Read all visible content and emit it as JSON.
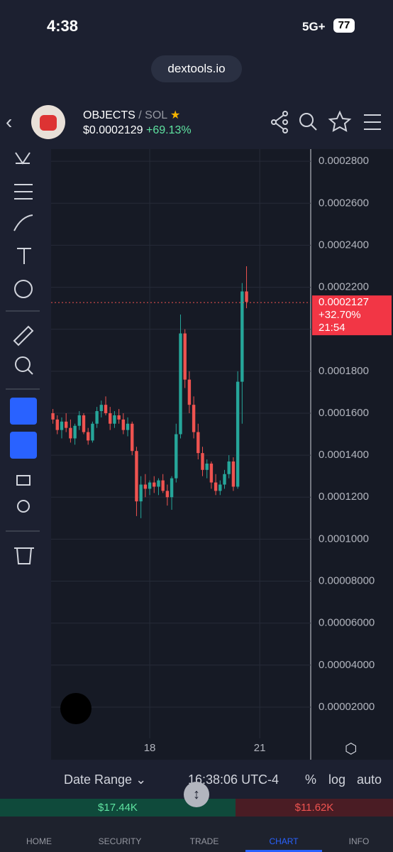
{
  "status_bar": {
    "time": "4:38",
    "network": "5G+",
    "battery": "77"
  },
  "url": "dextools.io",
  "header": {
    "pair": "OBJECTS",
    "quote": "SOL",
    "price": "$0.0002129",
    "change": "+69.13%"
  },
  "chart_data": {
    "type": "candlestick",
    "x": [
      15.36,
      15.48,
      15.6,
      15.72,
      15.84,
      15.96,
      16.08,
      16.2,
      16.32,
      16.44,
      16.56,
      16.68,
      16.8,
      16.92,
      17.04,
      17.16,
      17.28,
      17.4,
      17.52,
      17.64,
      17.76,
      17.88,
      18,
      18.12,
      18.24,
      18.36,
      18.48,
      18.6,
      18.72,
      18.84,
      18.96,
      19.08,
      19.2,
      19.32,
      19.44,
      19.56,
      19.68,
      19.8,
      19.92,
      20.04,
      20.16,
      20.28,
      20.4,
      20.52,
      20.64
    ],
    "open": [
      0.00016,
      0.000157,
      0.000152,
      0.000156,
      0.000153,
      0.000148,
      0.000154,
      0.000159,
      0.000151,
      0.000147,
      0.000155,
      0.000161,
      0.000164,
      0.00016,
      0.000155,
      0.000159,
      0.000157,
      0.000152,
      0.000155,
      0.000142,
      0.000118,
      0.000126,
      0.000124,
      0.000127,
      0.000125,
      0.000128,
      0.000123,
      0.00012,
      0.000129,
      0.00015,
      0.000198,
      0.000176,
      0.000164,
      0.000151,
      0.000141,
      0.000133,
      0.000136,
      0.000127,
      0.000123,
      0.000126,
      0.000131,
      0.000137,
      0.000125,
      0.000175,
      0.000218
    ],
    "high": [
      0.000162,
      0.000159,
      0.000158,
      0.00016,
      0.000157,
      0.000155,
      0.000161,
      0.00016,
      0.000153,
      0.000156,
      0.000163,
      0.000166,
      0.000168,
      0.000163,
      0.000161,
      0.000162,
      0.00016,
      0.000158,
      0.000156,
      0.000144,
      0.00013,
      0.000131,
      0.000128,
      0.00013,
      0.000129,
      0.000131,
      0.000126,
      0.00013,
      0.000155,
      0.000207,
      0.0002,
      0.00018,
      0.000168,
      0.000155,
      0.000144,
      0.000138,
      0.000137,
      0.000131,
      0.000128,
      0.000133,
      0.00014,
      0.000139,
      0.00018,
      0.000222,
      0.00023
    ],
    "low": [
      0.000155,
      0.00015,
      0.000148,
      0.000151,
      0.000146,
      0.000145,
      0.000152,
      0.00015,
      0.000145,
      0.000146,
      0.000153,
      0.000158,
      0.000159,
      0.000152,
      0.000153,
      0.000155,
      0.00015,
      0.000149,
      0.00014,
      0.000111,
      0.00011,
      0.00012,
      0.000121,
      0.000122,
      0.000121,
      0.000122,
      0.000116,
      0.000114,
      0.000127,
      0.000148,
      0.000172,
      0.00016,
      0.000148,
      0.000138,
      0.00013,
      0.000129,
      0.000124,
      0.000121,
      0.000121,
      0.000124,
      0.000129,
      0.000123,
      0.000124,
      0.000155,
      0.00021
    ],
    "close": [
      0.000157,
      0.000152,
      0.000156,
      0.000153,
      0.000148,
      0.000154,
      0.000159,
      0.000151,
      0.000147,
      0.000155,
      0.000161,
      0.000164,
      0.00016,
      0.000155,
      0.000159,
      0.000157,
      0.000152,
      0.000155,
      0.000142,
      0.000118,
      0.000126,
      0.000124,
      0.000127,
      0.000125,
      0.000128,
      0.000123,
      0.00012,
      0.000129,
      0.00015,
      0.000198,
      0.000176,
      0.000164,
      0.000151,
      0.000141,
      0.000133,
      0.000136,
      0.000127,
      0.000123,
      0.000126,
      0.000131,
      0.000137,
      0.000125,
      0.000175,
      0.000218,
      0.000213
    ],
    "up_color": "#26a69a",
    "down_color": "#ef5350",
    "xlim": [
      15.31,
      22.39
    ],
    "xticks": [
      18,
      21
    ],
    "ylim": [
      5.1e-06,
      0.0002858
    ],
    "yticks": [
      {
        "value": 2e-05,
        "label": "0.00002000"
      },
      {
        "value": 4e-05,
        "label": "0.00004000"
      },
      {
        "value": 6e-05,
        "label": "0.00006000"
      },
      {
        "value": 8e-05,
        "label": "0.00008000"
      },
      {
        "value": 0.0001,
        "label": "0.0001000"
      },
      {
        "value": 0.00012,
        "label": "0.0001200"
      },
      {
        "value": 0.00014,
        "label": "0.0001400"
      },
      {
        "value": 0.00016,
        "label": "0.0001600"
      },
      {
        "value": 0.00018,
        "label": "0.0001800"
      },
      {
        "value": 0.0002,
        "label": "0.0002000"
      },
      {
        "value": 0.00022,
        "label": "0.0002200"
      },
      {
        "value": 0.00024,
        "label": "0.0002400"
      },
      {
        "value": 0.00026,
        "label": "0.0002600"
      },
      {
        "value": 0.00028,
        "label": "0.0002800"
      }
    ],
    "grid": true,
    "last_price": 0.0002127,
    "last_change": "+32.70%",
    "countdown": "21:54"
  },
  "toolbar": {
    "date_range": "Date Range",
    "time": "16:38:06 UTC-4",
    "percent": "%",
    "log": "log",
    "auto": "auto"
  },
  "volume": {
    "buy": "$17.44K",
    "sell": "$11.62K"
  },
  "nav": [
    "HOME",
    "SECURITY",
    "TRADE",
    "CHART",
    "INFO"
  ]
}
